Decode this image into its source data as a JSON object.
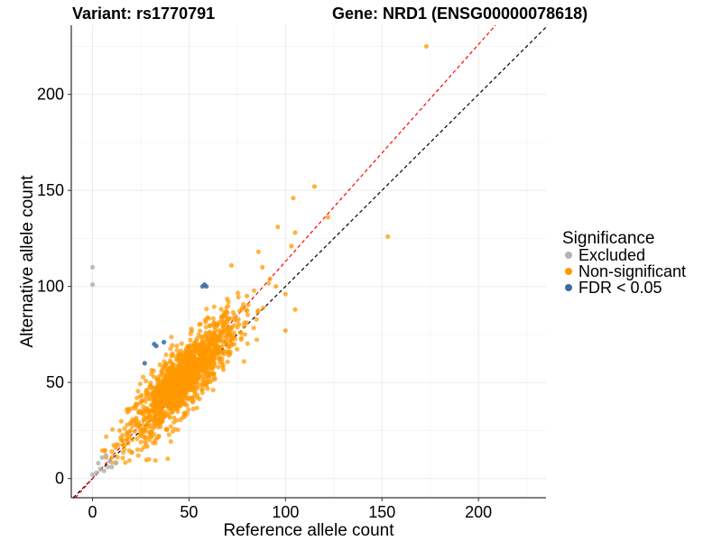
{
  "header": {
    "variant_label": "Variant: rs1770791",
    "gene_label": "Gene: NRD1 (ENSG00000078618)"
  },
  "chart_data": {
    "type": "scatter",
    "xlabel": "Reference allele count",
    "ylabel": "Alternative allele count",
    "xlim": [
      -11,
      235
    ],
    "ylim": [
      -10,
      236
    ],
    "xticks": [
      0,
      50,
      100,
      150,
      200
    ],
    "yticks": [
      0,
      50,
      100,
      150,
      200
    ],
    "grid": true,
    "legend": {
      "title": "Significance",
      "placement": "right",
      "entries": [
        {
          "label": "Excluded",
          "color": "#b3b3b3"
        },
        {
          "label": "Non-significant",
          "color": "#ff9900"
        },
        {
          "label": "FDR < 0.05",
          "color": "#3a6da4"
        }
      ]
    },
    "reference_lines": [
      {
        "slope": 1.0,
        "intercept": 0,
        "color": "#000000",
        "style": "dashed"
      },
      {
        "slope": 1.13,
        "intercept": 0,
        "color": "#ff0000",
        "style": "dashed"
      }
    ],
    "series": [
      {
        "name": "Excluded",
        "color": "#b3b3b3",
        "points": [
          [
            0,
            110
          ],
          [
            0,
            101
          ],
          [
            0,
            2
          ],
          [
            2,
            3
          ],
          [
            4,
            5
          ],
          [
            6,
            4
          ],
          [
            8,
            6
          ],
          [
            10,
            6
          ],
          [
            12,
            8
          ],
          [
            5,
            11
          ],
          [
            7,
            12
          ],
          [
            3,
            8
          ],
          [
            9,
            9
          ]
        ]
      },
      {
        "name": "FDR < 0.05",
        "color": "#3a6da4",
        "points": [
          [
            57,
            100
          ],
          [
            58,
            101
          ],
          [
            59,
            100
          ],
          [
            32,
            70
          ],
          [
            33,
            69
          ],
          [
            37,
            71
          ],
          [
            27,
            60
          ]
        ]
      },
      {
        "name": "Non-significant",
        "color": "#ff9900",
        "outliers": [
          [
            173,
            225
          ],
          [
            115,
            152
          ],
          [
            104,
            146
          ],
          [
            122,
            136
          ],
          [
            153,
            126
          ],
          [
            96,
            131
          ],
          [
            105,
            128
          ],
          [
            86,
            118
          ],
          [
            72,
            111
          ],
          [
            103,
            121
          ],
          [
            92,
            104
          ],
          [
            100,
            96
          ],
          [
            105,
            88
          ],
          [
            100,
            77
          ],
          [
            7,
            11
          ],
          [
            10,
            14
          ],
          [
            12,
            16
          ],
          [
            15,
            20
          ],
          [
            14,
            25
          ],
          [
            18,
            28
          ],
          [
            24,
            28
          ],
          [
            95,
            100
          ],
          [
            88,
            110
          ],
          [
            80,
            95
          ]
        ],
        "cluster": {
          "n": 1400,
          "x_mean": 47,
          "x_sd": 14,
          "y_mean": 52,
          "y_sd": 16,
          "corr": 0.85,
          "x_range": [
            5,
            110
          ],
          "y_range": [
            8,
            130
          ]
        }
      }
    ]
  }
}
